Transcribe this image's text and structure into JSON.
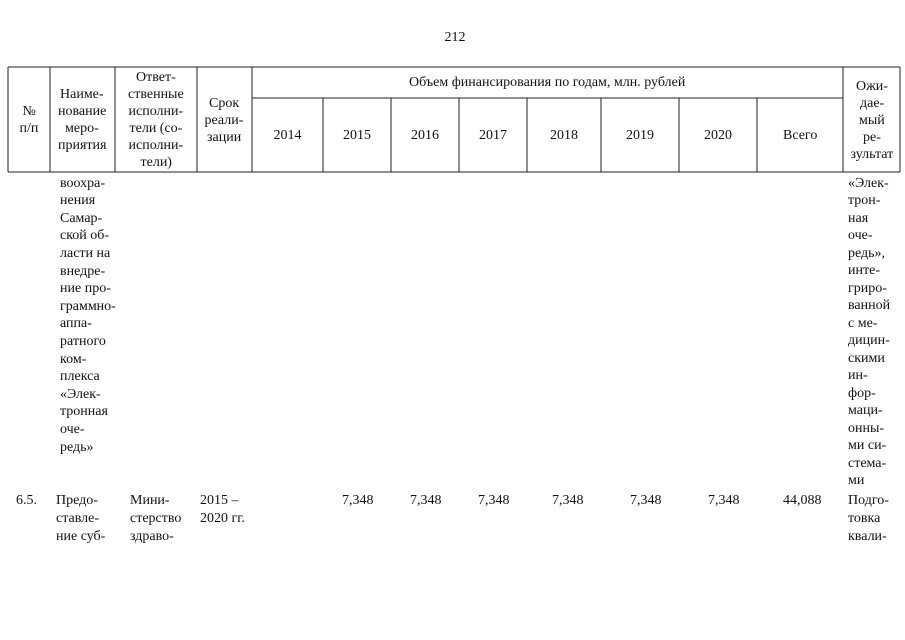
{
  "page_number": "212",
  "table": {
    "header": {
      "number": [
        "№",
        "п/п"
      ],
      "name": [
        "Наиме-",
        "нование",
        "меро-",
        "приятия"
      ],
      "responsible": [
        "Ответ-",
        "ственные",
        "исполни-",
        "тели (со-",
        "исполни-",
        "тели)"
      ],
      "period": [
        "Срок",
        "реали-",
        "зации"
      ],
      "financing": "Объем финансирования по годам, млн. рублей",
      "years": [
        "2014",
        "2015",
        "2016",
        "2017",
        "2018",
        "2019",
        "2020",
        "Всего"
      ],
      "result": [
        "Ожи-",
        "дае-",
        "мый",
        "ре-",
        "зультат"
      ]
    },
    "rows": [
      {
        "name": [
          "воохра-",
          "нения",
          "Самар-",
          "ской об-",
          "ласти на",
          "внедре-",
          "ние про-",
          "граммно-",
          "аппа-",
          "ратного",
          "ком-",
          "плекса",
          "«Элек-",
          "тронная",
          "оче-",
          "редь»"
        ],
        "result": [
          "«Элек-",
          "трон-",
          "ная",
          "оче-",
          "редь»,",
          "инте-",
          "гриро-",
          "ванной",
          "с ме-",
          "дицин-",
          "скими",
          "ин-",
          "фор-",
          "маци-",
          "онны-",
          "ми си-",
          "стема-",
          "ми"
        ]
      },
      {
        "number": "6.5.",
        "name": [
          "Предо-",
          "ставле-",
          "ние суб-"
        ],
        "responsible": [
          "Мини-",
          "стерство",
          "здраво-"
        ],
        "period": [
          "2015 –",
          "2020 гг."
        ],
        "values": [
          "7,348",
          "7,348",
          "7,348",
          "7,348",
          "7,348",
          "7,348"
        ],
        "total": "44,088",
        "result": [
          "Подго-",
          "товка",
          "квали-"
        ]
      }
    ]
  }
}
